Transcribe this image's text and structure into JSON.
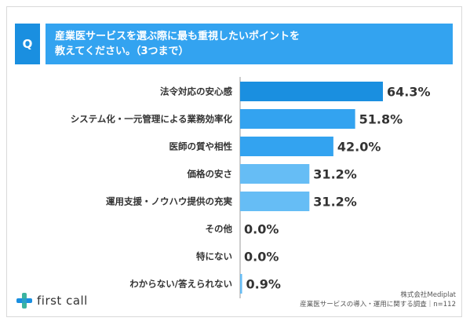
{
  "question": {
    "label": "Q",
    "text_line1": "産業医サービスを選ぶ際に最も重視したいポイントを",
    "text_line2": "教えてください。（3つまで）"
  },
  "chart_data": {
    "type": "bar",
    "orientation": "horizontal",
    "categories": [
      "法令対応の安心感",
      "システム化・一元管理による業務効率化",
      "医師の質や相性",
      "価格の安さ",
      "運用支援・ノウハウ提供の充実",
      "その他",
      "特にない",
      "わからない/答えられない"
    ],
    "values": [
      64.3,
      51.8,
      42.0,
      31.2,
      31.2,
      0.0,
      0.0,
      0.9
    ],
    "value_labels": [
      "64.3%",
      "51.8%",
      "42.0%",
      "31.2%",
      "31.2%",
      "0.0%",
      "0.0%",
      "0.9%"
    ],
    "bar_colors": [
      "#1a8fe0",
      "#33a3f0",
      "#33a3f0",
      "#66bdf5",
      "#66bdf5",
      "#66bdf5",
      "#66bdf5",
      "#66bdf5"
    ],
    "xlim": [
      0,
      64.3
    ]
  },
  "logo": {
    "text": "first call",
    "icon": "plus-cross-icon",
    "colors": [
      "#3cb4a0",
      "#1a8fe0"
    ]
  },
  "source": {
    "line1": "株式会社Mediplat",
    "line2": "産業医サービスの導入・運用に関する調査｜n=112"
  }
}
